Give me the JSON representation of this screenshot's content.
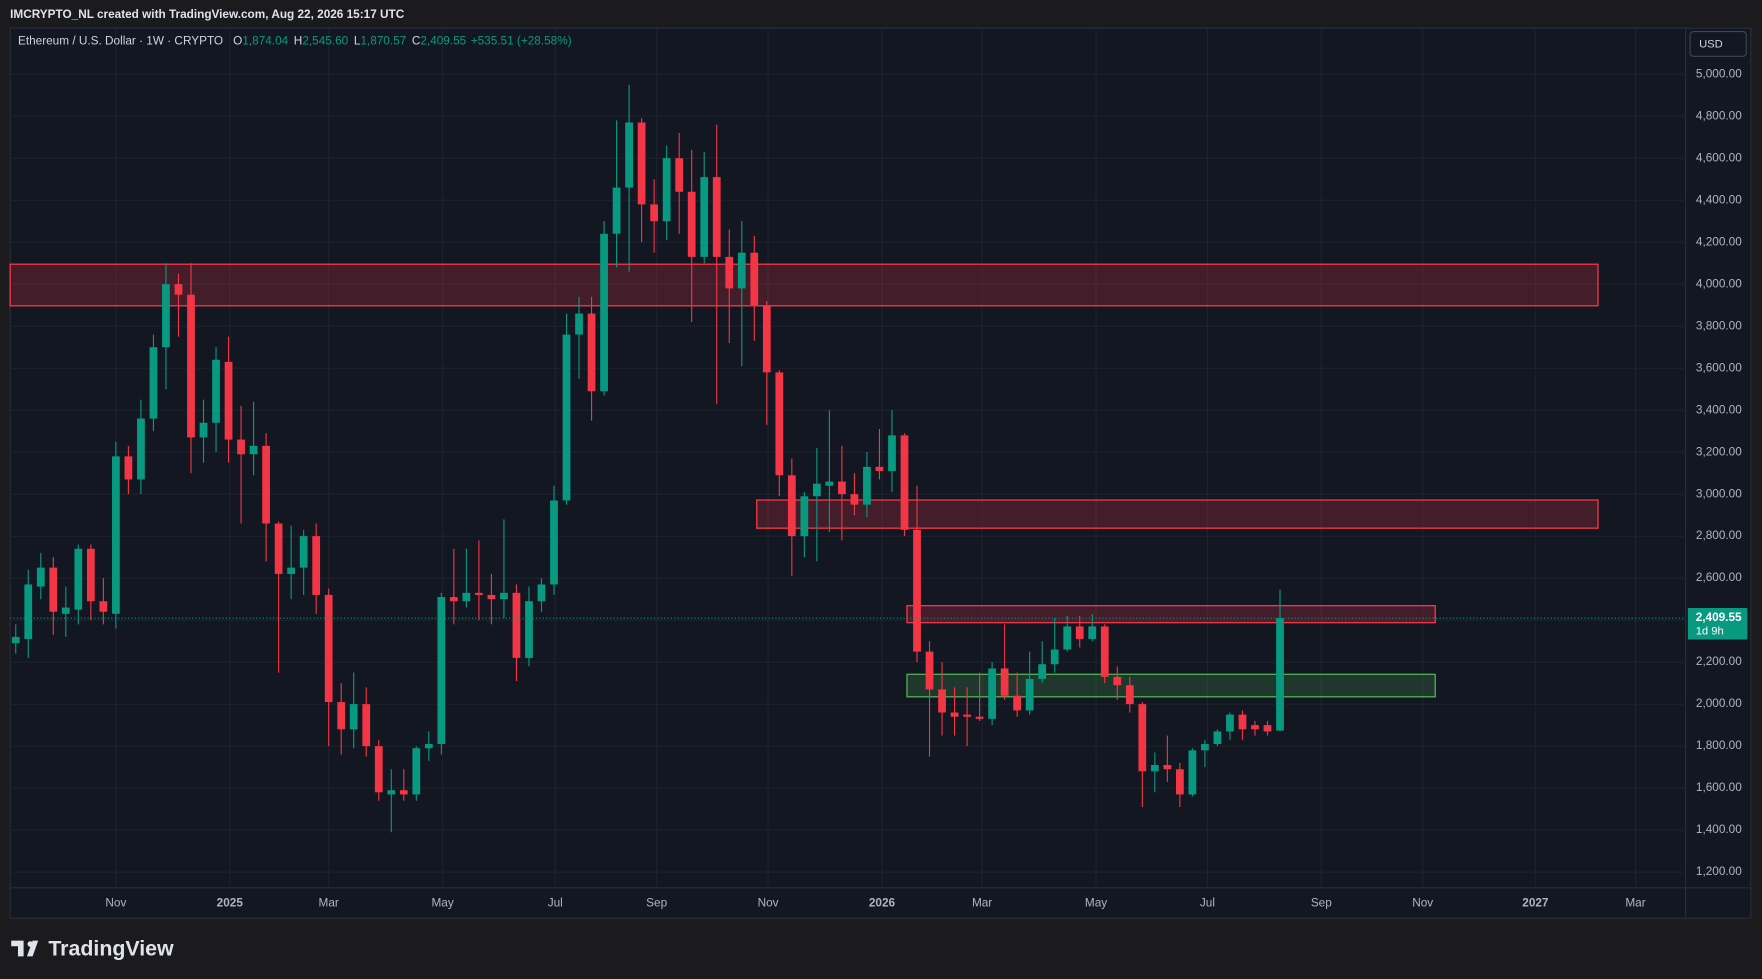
{
  "attribution": "IMCRYPTO_NL created with TradingView.com, Aug 22, 2026 15:17 UTC",
  "logo": "TradingView",
  "currency": "USD",
  "chart_data": {
    "type": "candlestick",
    "symbol": "Ethereum / U.S. Dollar · 1W · CRYPTO",
    "ohlc_labels": [
      {
        "key": "O",
        "value": "1,874.04"
      },
      {
        "key": "H",
        "value": "2,545.60"
      },
      {
        "key": "L",
        "value": "1,870.57"
      },
      {
        "key": "C",
        "value": "2,409.55"
      }
    ],
    "change": "+535.51 (+28.58%)",
    "up_color": "#089981",
    "down_color": "#f23645",
    "open": [
      2290,
      2310,
      2560,
      2650,
      2430,
      2450,
      2740,
      2490,
      2430,
      3180,
      3070,
      3360,
      3700,
      4000,
      3950,
      3270,
      3340,
      3630,
      3260,
      3190,
      3230,
      2860,
      2620,
      2650,
      2800,
      2520,
      2010,
      1880,
      2000,
      1800,
      1570,
      1590,
      1570,
      1790,
      1810,
      2510,
      2490,
      2530,
      2520,
      2500,
      2530,
      2220,
      2490,
      2570,
      2970,
      3760,
      3860,
      3490,
      4240,
      4460,
      4770,
      4380,
      4300,
      4600,
      4440,
      4130,
      4510,
      4130,
      3980,
      4150,
      3900,
      3580,
      3090,
      2800,
      2990,
      3040,
      3060,
      3000,
      2950,
      3130,
      3110,
      3280,
      2830,
      2250,
      2070,
      1960,
      1950,
      1940,
      1930,
      2170,
      2040,
      1970,
      2120,
      2190,
      2260,
      2370,
      2310,
      2370,
      2130,
      2090,
      2000,
      1680,
      1710,
      1690,
      1570,
      1780,
      1810,
      1870,
      1950,
      1900,
      1900,
      1874.04
    ],
    "high": [
      2380,
      2640,
      2720,
      2700,
      2560,
      2760,
      2760,
      2600,
      3250,
      3230,
      3450,
      3760,
      4100,
      4050,
      4100,
      3450,
      3700,
      3750,
      3420,
      3440,
      3290,
      2870,
      2850,
      2830,
      2860,
      2550,
      2100,
      2150,
      2080,
      1830,
      1690,
      1690,
      1800,
      1870,
      2530,
      2740,
      2740,
      2780,
      2620,
      2880,
      2570,
      2560,
      2600,
      3040,
      3860,
      3940,
      3940,
      4300,
      4780,
      4950,
      4790,
      4500,
      4660,
      4720,
      4640,
      4630,
      4760,
      4260,
      4300,
      4230,
      3920,
      3590,
      3170,
      3010,
      3220,
      3400,
      3230,
      3100,
      3200,
      3310,
      3400,
      3290,
      3040,
      2300,
      2200,
      2080,
      2080,
      2150,
      2200,
      2380,
      2150,
      2250,
      2300,
      2410,
      2420,
      2420,
      2430,
      2380,
      2180,
      2130,
      2010,
      1770,
      1850,
      1720,
      1790,
      1830,
      1880,
      1960,
      1970,
      1920,
      1920,
      2545.6
    ],
    "low": [
      2240,
      2220,
      2500,
      2330,
      2320,
      2380,
      2400,
      2380,
      2360,
      3000,
      3000,
      3300,
      3500,
      3750,
      3100,
      3150,
      3200,
      3150,
      2860,
      3090,
      2680,
      2150,
      2500,
      2520,
      2430,
      1800,
      1760,
      1790,
      1750,
      1540,
      1390,
      1540,
      1540,
      1730,
      1760,
      2380,
      2460,
      2400,
      2380,
      2410,
      2110,
      2180,
      2440,
      2520,
      2950,
      3550,
      3350,
      3470,
      4080,
      4060,
      4200,
      4150,
      4210,
      4240,
      3820,
      4100,
      3430,
      3720,
      3610,
      3730,
      3330,
      2990,
      2610,
      2700,
      2680,
      2820,
      2780,
      2900,
      2890,
      3070,
      3010,
      2800,
      2200,
      1750,
      1850,
      1850,
      1800,
      1920,
      1900,
      2020,
      1940,
      1950,
      2100,
      2150,
      2250,
      2270,
      2300,
      2100,
      2020,
      1960,
      1510,
      1580,
      1630,
      1510,
      1560,
      1700,
      1800,
      1830,
      1830,
      1850,
      1850,
      1870.57
    ],
    "close": [
      2320,
      2570,
      2650,
      2440,
      2460,
      2740,
      2490,
      2440,
      3180,
      3070,
      3360,
      3700,
      4000,
      3950,
      3270,
      3340,
      3640,
      3260,
      3190,
      3230,
      2860,
      2620,
      2650,
      2800,
      2520,
      2010,
      1880,
      2000,
      1800,
      1580,
      1590,
      1570,
      1790,
      1810,
      2510,
      2490,
      2530,
      2520,
      2500,
      2530,
      2220,
      2490,
      2570,
      2970,
      3760,
      3860,
      3490,
      4240,
      4460,
      4770,
      4380,
      4300,
      4600,
      4440,
      4130,
      4510,
      4130,
      3980,
      4150,
      3900,
      3580,
      3090,
      2800,
      2990,
      3050,
      3060,
      3000,
      2950,
      3130,
      3110,
      3280,
      2830,
      2250,
      2070,
      1960,
      1940,
      1940,
      1930,
      2170,
      2040,
      1970,
      2120,
      2190,
      2260,
      2370,
      2310,
      2370,
      2130,
      2090,
      2000,
      1680,
      1710,
      1690,
      1570,
      1780,
      1810,
      1870,
      1950,
      1880,
      1880,
      1870,
      2409.55
    ],
    "zones": [
      {
        "top": 4095,
        "bottom": 3897,
        "start": -0.45,
        "end": 126.4,
        "color": "#f23645"
      },
      {
        "top": 2972,
        "bottom": 2838,
        "start": 59.2,
        "end": 126.4,
        "color": "#f23645"
      },
      {
        "top": 2469,
        "bottom": 2388,
        "start": 71.2,
        "end": 113.4,
        "color": "#f23645"
      },
      {
        "top": 2142,
        "bottom": 2035,
        "start": 71.2,
        "end": 113.4,
        "color": "#4caf50"
      }
    ],
    "last_price": {
      "value": 2409.55,
      "label": "2,409.55",
      "countdown": "1d 9h"
    },
    "xlim": [
      -0.45,
      133.4
    ],
    "xticks": [
      {
        "value": 8.0,
        "label": "Nov"
      },
      {
        "value": 17.1,
        "label": "2025"
      },
      {
        "value": 25.0,
        "label": "Mar"
      },
      {
        "value": 34.1,
        "label": "May"
      },
      {
        "value": 43.1,
        "label": "Jul"
      },
      {
        "value": 51.2,
        "label": "Sep"
      },
      {
        "value": 60.1,
        "label": "Nov"
      },
      {
        "value": 69.2,
        "label": "2026"
      },
      {
        "value": 77.2,
        "label": "Mar"
      },
      {
        "value": 86.3,
        "label": "May"
      },
      {
        "value": 95.2,
        "label": "Jul"
      },
      {
        "value": 104.3,
        "label": "Sep"
      },
      {
        "value": 112.4,
        "label": "Nov"
      },
      {
        "value": 121.4,
        "label": "2027"
      },
      {
        "value": 129.4,
        "label": "Mar"
      }
    ],
    "ylim": [
      1125,
      5219
    ],
    "yticks": [
      {
        "value": 1200,
        "label": "1,200.00"
      },
      {
        "value": 1400,
        "label": "1,400.00"
      },
      {
        "value": 1600,
        "label": "1,600.00"
      },
      {
        "value": 1800,
        "label": "1,800.00"
      },
      {
        "value": 2000,
        "label": "2,000.00"
      },
      {
        "value": 2200,
        "label": "2,200.00"
      },
      {
        "value": 2400,
        "label": "2,400.00"
      },
      {
        "value": 2600,
        "label": "2,600.00"
      },
      {
        "value": 2800,
        "label": "2,800.00"
      },
      {
        "value": 3000,
        "label": "3,000.00"
      },
      {
        "value": 3200,
        "label": "3,200.00"
      },
      {
        "value": 3400,
        "label": "3,400.00"
      },
      {
        "value": 3600,
        "label": "3,600.00"
      },
      {
        "value": 3800,
        "label": "3,800.00"
      },
      {
        "value": 4000,
        "label": "4,000.00"
      },
      {
        "value": 4200,
        "label": "4,200.00"
      },
      {
        "value": 4400,
        "label": "4,400.00"
      },
      {
        "value": 4600,
        "label": "4,600.00"
      },
      {
        "value": 4800,
        "label": "4,800.00"
      },
      {
        "value": 5000,
        "label": "5,000.00"
      }
    ],
    "grid": true
  }
}
